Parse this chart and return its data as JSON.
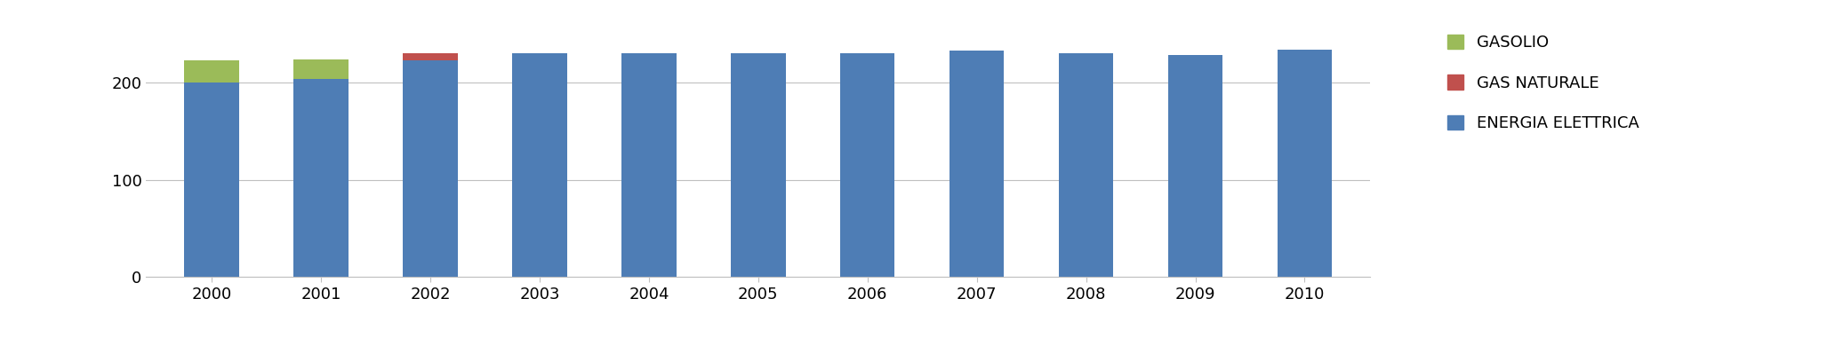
{
  "years": [
    2000,
    2001,
    2002,
    2003,
    2004,
    2005,
    2006,
    2007,
    2008,
    2009,
    2010
  ],
  "energia_elettrica": [
    200,
    203,
    222,
    230,
    230,
    230,
    230,
    232,
    230,
    228,
    233
  ],
  "gas_naturale": [
    0,
    0,
    8,
    0,
    0,
    0,
    0,
    0,
    0,
    0,
    0
  ],
  "gasolio": [
    22,
    20,
    0,
    0,
    0,
    0,
    0,
    0,
    0,
    0,
    0
  ],
  "color_energia": "#4E7DB5",
  "color_gas": "#C0504D",
  "color_gasolio": "#9BBB59",
  "legend_labels": [
    "GASOLIO",
    "GAS NATURALE",
    "ENERGIA ELETTRICA"
  ],
  "ylim": [
    0,
    260
  ],
  "yticks": [
    0,
    100,
    200
  ],
  "background_color": "#FFFFFF",
  "grid_color": "#C0C0C0",
  "bar_width": 0.5
}
